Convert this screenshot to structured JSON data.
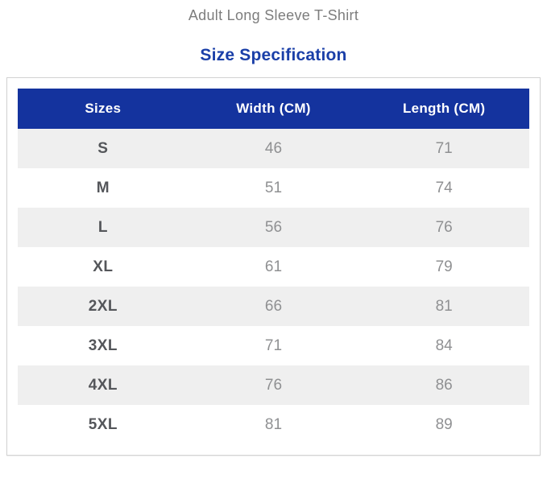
{
  "page": {
    "product_title": "Adult Long Sleeve T-Shirt",
    "section_title": "Size Specification"
  },
  "colors": {
    "header_bg": "#14339e",
    "section_title_color": "#1a3fa8",
    "product_title_color": "#7d7d7d",
    "row_alt_bg": "#efefef",
    "size_text": "#54565a",
    "value_text": "#8f9092",
    "card_border": "#d2d2d2"
  },
  "table": {
    "columns": [
      "Sizes",
      "Width (CM)",
      "Length (CM)"
    ],
    "rows": [
      {
        "size": "S",
        "width": "46",
        "length": "71"
      },
      {
        "size": "M",
        "width": "51",
        "length": "74"
      },
      {
        "size": "L",
        "width": "56",
        "length": "76"
      },
      {
        "size": "XL",
        "width": "61",
        "length": "79"
      },
      {
        "size": "2XL",
        "width": "66",
        "length": "81"
      },
      {
        "size": "3XL",
        "width": "71",
        "length": "84"
      },
      {
        "size": "4XL",
        "width": "76",
        "length": "86"
      },
      {
        "size": "5XL",
        "width": "81",
        "length": "89"
      }
    ]
  }
}
